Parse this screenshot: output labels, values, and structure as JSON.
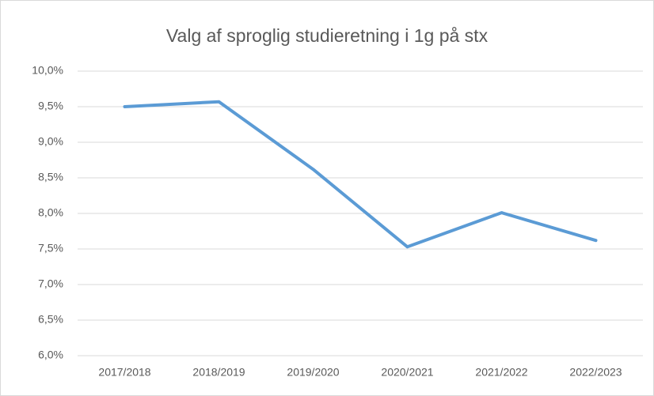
{
  "chart_data": {
    "type": "line",
    "title": "Valg af sproglig studieretning i 1g på stx",
    "categories": [
      "2017/2018",
      "2018/2019",
      "2019/2020",
      "2020/2021",
      "2021/2022",
      "2022/2023"
    ],
    "series": [
      {
        "name": "Sproglig studieretning",
        "color": "#5b9bd5",
        "values": [
          9.5,
          9.57,
          8.62,
          7.53,
          8.01,
          7.62
        ]
      }
    ],
    "ylim": [
      6,
      10
    ],
    "yticks": [
      {
        "value": 6,
        "label": "6,0%"
      },
      {
        "value": 6.5,
        "label": "6,5%"
      },
      {
        "value": 7,
        "label": "7,0%"
      },
      {
        "value": 7.5,
        "label": "7,5%"
      },
      {
        "value": 8,
        "label": "8,0%"
      },
      {
        "value": 8.5,
        "label": "8,5%"
      },
      {
        "value": 9,
        "label": "9,0%"
      },
      {
        "value": 9.5,
        "label": "9,5%"
      },
      {
        "value": 10,
        "label": "10,0%"
      }
    ],
    "grid": true
  }
}
